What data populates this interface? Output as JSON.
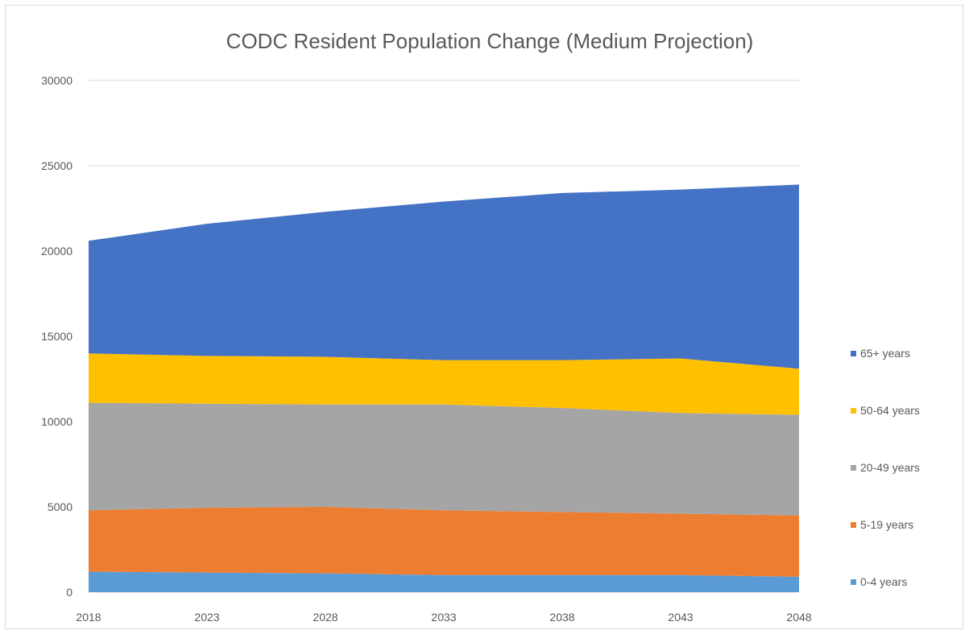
{
  "chart_data": {
    "type": "area",
    "stacked": true,
    "title": "CODC Resident Population Change (Medium Projection)",
    "xlabel": "",
    "ylabel": "",
    "x": [
      "2018",
      "2023",
      "2028",
      "2033",
      "2038",
      "2043",
      "2048"
    ],
    "ylim": [
      0,
      30000
    ],
    "yticks": [
      0,
      5000,
      10000,
      15000,
      20000,
      25000,
      30000
    ],
    "grid": true,
    "legend_position": "right",
    "series": [
      {
        "name": "0-4 years",
        "color": "#5B9BD5",
        "values": [
          1200,
          1150,
          1100,
          1000,
          1000,
          1000,
          900
        ]
      },
      {
        "name": "5-19 years",
        "color": "#ED7D31",
        "values": [
          3600,
          3800,
          3900,
          3800,
          3700,
          3600,
          3600
        ]
      },
      {
        "name": "20-49 years",
        "color": "#A5A5A5",
        "values": [
          6300,
          6100,
          6000,
          6200,
          6100,
          5900,
          5900
        ]
      },
      {
        "name": "50-64 years",
        "color": "#FFC000",
        "values": [
          2900,
          2800,
          2800,
          2600,
          2800,
          3200,
          2700
        ]
      },
      {
        "name": "65+ years",
        "color": "#4472C4",
        "values": [
          6600,
          7750,
          8500,
          9300,
          9800,
          9900,
          10800
        ]
      }
    ]
  }
}
